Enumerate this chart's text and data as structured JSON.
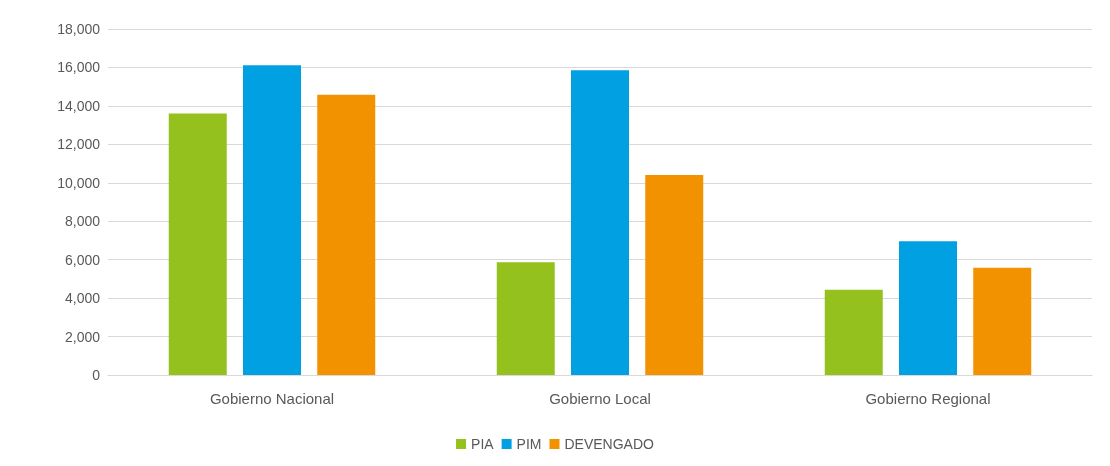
{
  "chart_data": {
    "type": "bar",
    "categories": [
      "Gobierno Nacional",
      "Gobierno Local",
      "Gobierno Regional"
    ],
    "series": [
      {
        "name": "PIA",
        "color": "#95c11f",
        "values": [
          13600,
          5870,
          4430
        ]
      },
      {
        "name": "PIM",
        "color": "#00a0e3",
        "values": [
          16120,
          15860,
          6960
        ]
      },
      {
        "name": "DEVENGADO",
        "color": "#f39200",
        "values": [
          14580,
          10400,
          5580
        ]
      }
    ],
    "ylim": [
      0,
      18000
    ],
    "yticks": [
      {
        "value": 0,
        "label": "0"
      },
      {
        "value": 2000,
        "label": "2,000"
      },
      {
        "value": 4000,
        "label": "4,000"
      },
      {
        "value": 6000,
        "label": "6,000"
      },
      {
        "value": 8000,
        "label": "8,000"
      },
      {
        "value": 10000,
        "label": "10,000"
      },
      {
        "value": 12000,
        "label": "12,000"
      },
      {
        "value": 14000,
        "label": "14,000"
      },
      {
        "value": 16000,
        "label": "16,000"
      },
      {
        "value": 18000,
        "label": "18,000"
      }
    ],
    "grid": "y",
    "legend": "bottom"
  }
}
